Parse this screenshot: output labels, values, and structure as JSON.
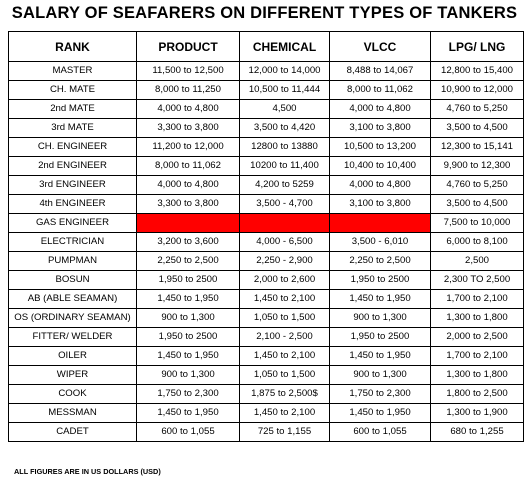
{
  "title": "SALARY OF SEAFARERS ON DIFFERENT TYPES OF TANKERS",
  "table": {
    "headers": [
      "RANK",
      "PRODUCT",
      "CHEMICAL",
      "VLCC",
      "LPG/ LNG"
    ],
    "rows": [
      [
        "MASTER",
        "11,500 to 12,500",
        "12,000 to 14,000",
        "8,488 to 14,067",
        "12,800 to 15,400"
      ],
      [
        "CH. MATE",
        "8,000 to 11,250",
        "10,500 to 11,444",
        "8,000 to 11,062",
        "10,900 to 12,000"
      ],
      [
        "2nd MATE",
        "4,000 to 4,800",
        "4,500",
        "4,000 to 4,800",
        "4,760 to 5,250"
      ],
      [
        "3rd MATE",
        "3,300 to 3,800",
        "3,500 to 4,420",
        "3,100 to 3,800",
        "3,500 to 4,500"
      ],
      [
        "CH. ENGINEER",
        "11,200 to 12,000",
        "12800 to 13880",
        "10,500 to 13,200",
        "12,300 to 15,141"
      ],
      [
        "2nd ENGINEER",
        "8,000 to 11,062",
        "10200 to 11,400",
        "10,400 to 10,400",
        "9,900 to 12,300"
      ],
      [
        "3rd ENGINEER",
        "4,000 to 4,800",
        "4,200 to 5259",
        "4,000 to 4,800",
        "4,760 to 5,250"
      ],
      [
        "4th ENGINEER",
        "3,300 to 3,800",
        "3,500 - 4,700",
        "3,100 to 3,800",
        "3,500 to 4,500"
      ],
      [
        "GAS ENGINEER",
        "",
        "",
        "",
        "7,500 to 10,000"
      ],
      [
        "ELECTRICIAN",
        "3,200 to 3,600",
        "4,000 - 6,500",
        "3,500 - 6,010",
        "6,000 to 8,100"
      ],
      [
        "PUMPMAN",
        "2,250 to 2,500",
        "2,250 - 2,900",
        "2,250 to 2,500",
        "2,500"
      ],
      [
        "BOSUN",
        "1,950 to 2500",
        "2,000 to 2,600",
        "1,950 to 2500",
        "2,300 TO 2,500"
      ],
      [
        "AB (ABLE SEAMAN)",
        "1,450 to 1,950",
        "1,450 to 2,100",
        "1,450 to 1,950",
        "1,700 to 2,100"
      ],
      [
        "OS (ORDINARY SEAMAN)",
        "900 to 1,300",
        "1,050 to 1,500",
        "900 to 1,300",
        "1,300 to 1,800"
      ],
      [
        "FITTER/ WELDER",
        "1,950 to 2500",
        "2,100 - 2,500",
        "1,950 to 2500",
        "2,000 to 2,500"
      ],
      [
        "OILER",
        "1,450 to 1,950",
        "1,450 to 2,100",
        "1,450 to 1,950",
        "1,700 to 2,100"
      ],
      [
        "WIPER",
        "900 to 1,300",
        "1,050 to 1,500",
        "900 to 1,300",
        "1,300 to 1,800"
      ],
      [
        "COOK",
        "1,750 to 2,300",
        "1,875 to 2,500$",
        "1,750 to 2,300",
        "1,800 to 2,500"
      ],
      [
        "MESSMAN",
        "1,450 to 1,950",
        "1,450 to 2,100",
        "1,450 to 1,950",
        "1,300 to 1,900"
      ],
      [
        "CADET",
        "600 to 1,055",
        "725 to 1,155",
        "600 to 1,055",
        "680 to 1,255"
      ]
    ],
    "highlighted_cells": [
      {
        "row": 8,
        "col": 1
      },
      {
        "row": 8,
        "col": 2
      },
      {
        "row": 8,
        "col": 3
      }
    ],
    "highlight_color": "#ff0000"
  },
  "footnote": "ALL FIGURES ARE IN US DOLLARS (USD)"
}
